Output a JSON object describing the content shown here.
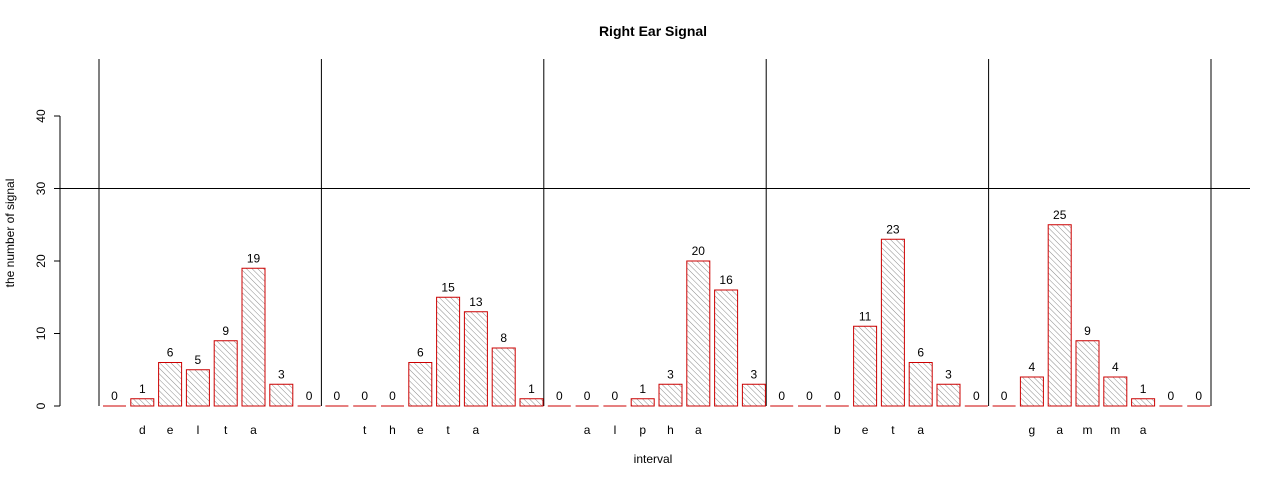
{
  "chart_data": {
    "type": "bar",
    "title": "Right Ear Signal",
    "xlabel": "interval",
    "ylabel": "the number of signal",
    "ylim": [
      0,
      48
    ],
    "yticks": [
      0,
      10,
      20,
      30,
      40
    ],
    "reference_line_y": 30,
    "bar_fill": "#ffffff",
    "bar_hatch_color": "#888888",
    "bar_border_color": "#cc0000",
    "groups": [
      {
        "letters": [
          "d",
          "e",
          "l",
          "t",
          "a"
        ],
        "values": [
          0,
          1,
          6,
          5,
          9,
          19,
          3,
          0
        ]
      },
      {
        "letters": [
          "t",
          "h",
          "e",
          "t",
          "a"
        ],
        "values": [
          0,
          0,
          0,
          6,
          15,
          13,
          8,
          1
        ]
      },
      {
        "letters": [
          "a",
          "l",
          "p",
          "h",
          "a"
        ],
        "values": [
          0,
          0,
          0,
          1,
          3,
          20,
          16,
          3
        ]
      },
      {
        "letters": [
          "b",
          "e",
          "t",
          "a"
        ],
        "values": [
          0,
          0,
          0,
          11,
          23,
          6,
          3,
          0
        ]
      },
      {
        "letters": [
          "g",
          "a",
          "m",
          "m",
          "a"
        ],
        "values": [
          0,
          4,
          25,
          9,
          4,
          1,
          0,
          0
        ]
      }
    ]
  }
}
